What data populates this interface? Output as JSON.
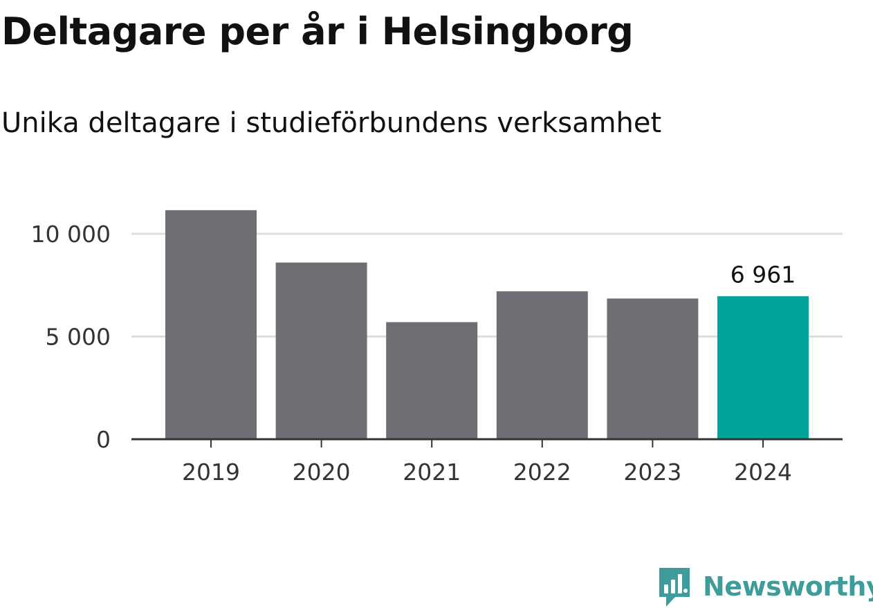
{
  "title": "Deltagare per år i Helsingborg",
  "subtitle": "Unika deltagare i studieförbundens verksamhet",
  "chart_data": {
    "type": "bar",
    "title": "Deltagare per år i Helsingborg",
    "subtitle": "Unika deltagare i studieförbundens verksamhet",
    "categories": [
      "2019",
      "2020",
      "2021",
      "2022",
      "2023",
      "2024"
    ],
    "values": [
      11150,
      8600,
      5700,
      7200,
      6850,
      6961
    ],
    "highlight_index": 5,
    "data_labels": [
      {
        "index": 5,
        "text": "6 961"
      }
    ],
    "ylim": [
      0,
      11300
    ],
    "yticks": [
      0,
      5000,
      10000
    ],
    "ytick_labels": [
      "0",
      "5 000",
      "10 000"
    ],
    "xlabel": "",
    "ylabel": "",
    "grid": "horizontal",
    "colors": {
      "bar": "#6f6e74",
      "highlight": "#00a49a",
      "grid": "#dddddd",
      "axis": "#333333",
      "tick_text": "#333333",
      "label_text": "#111111"
    }
  },
  "branding": {
    "name": "Newsworthy",
    "color": "#3e9d9a",
    "icon": "newsworthy-logo-icon"
  }
}
